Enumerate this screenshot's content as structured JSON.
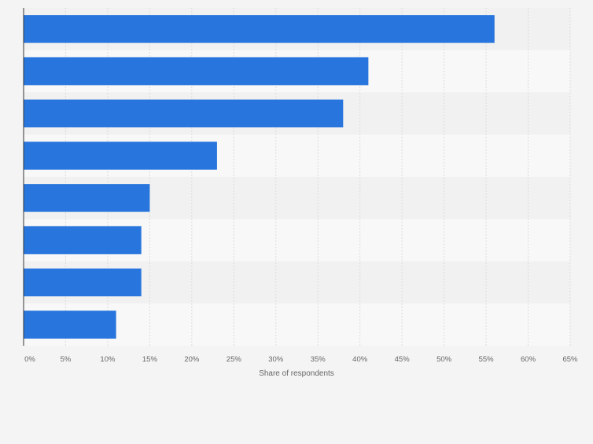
{
  "chart_data": {
    "type": "bar",
    "orientation": "horizontal",
    "categories": [
      "",
      "",
      "",
      "",
      "",
      "",
      "",
      ""
    ],
    "values": [
      56,
      41,
      38,
      23,
      15,
      14,
      14,
      11
    ],
    "title": "",
    "xlabel": "Share of respondents",
    "ylabel": "",
    "xlim": [
      0,
      65
    ],
    "ticks": [
      "0%",
      "5%",
      "10%",
      "15%",
      "20%",
      "25%",
      "30%",
      "35%",
      "40%",
      "45%",
      "50%",
      "55%",
      "60%",
      "65%"
    ],
    "grid": true,
    "bar_color": "#2876dd"
  }
}
